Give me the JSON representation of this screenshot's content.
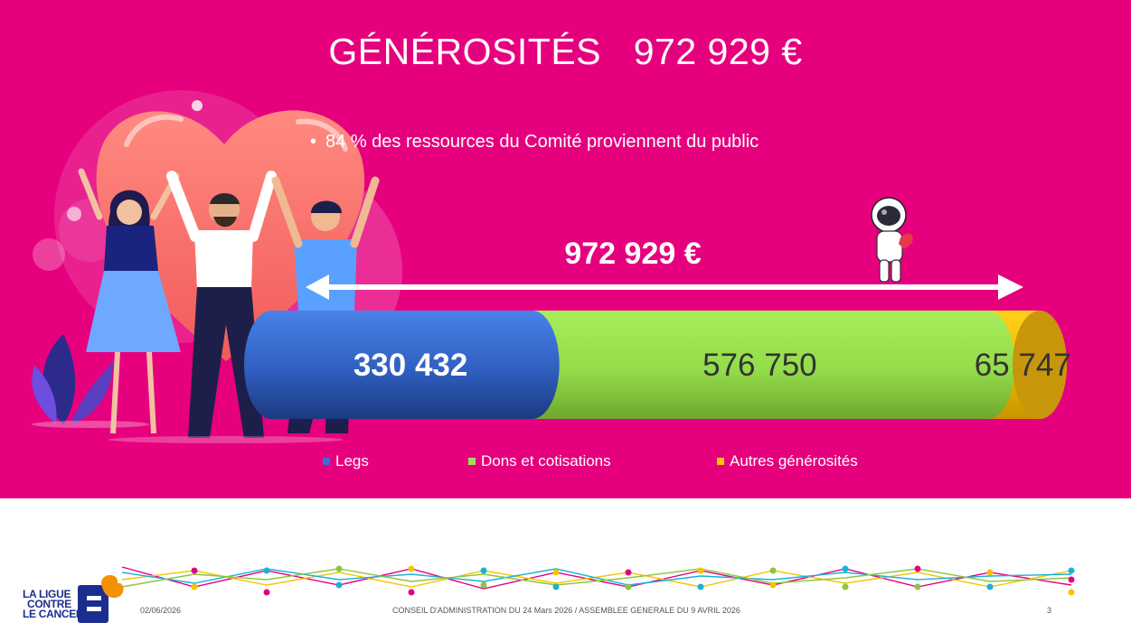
{
  "slide": {
    "title_main": "GÉNÉROSITÉS",
    "title_amount": "972 929 €",
    "bullet": "84 % des ressources du Comité proviennent du public",
    "total_label": "972 929 €"
  },
  "chart_data": {
    "type": "bar",
    "orientation": "horizontal-stacked",
    "categories": [
      "Générosités"
    ],
    "series": [
      {
        "name": "Legs",
        "values": [
          330432
        ],
        "label": "330 432",
        "color": "#3a6fd0"
      },
      {
        "name": "Dons et cotisations",
        "values": [
          576750
        ],
        "label": "576 750",
        "color": "#9ee05a"
      },
      {
        "name": "Autres générosités",
        "values": [
          65747
        ],
        "label": "65 747",
        "color": "#ffc400"
      }
    ],
    "total": 972929,
    "total_label": "972 929 €",
    "title": "GÉNÉROSITÉS 972 929 €",
    "legend": "bottom",
    "grid": false
  },
  "colors": {
    "background": "#e6007e",
    "text": "#ffffff"
  },
  "footer": {
    "date": "02/06/2026",
    "meeting": "CONSEIL D'ADMINISTRATION DU 24 Mars 2026 / ASSEMBLEE GENERALE DU 9 AVRIL 2026",
    "page": "3",
    "logo_line1": "LA LIGUE",
    "logo_line2": "CONTRE",
    "logo_line3": "LE CANCER"
  },
  "icons": {
    "illustration": "people-heart-illustration",
    "astronaut": "astronaut-icon",
    "arrow": "double-arrow-icon"
  }
}
